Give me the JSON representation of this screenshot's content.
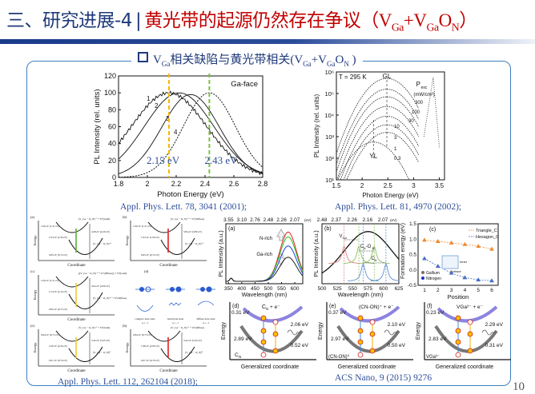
{
  "title": {
    "prefix": "三、研究进展-4",
    "separator": "|",
    "main": "黄光带的起源仍然存在争议",
    "formula": "（V",
    "f_sub1": "Ga",
    "f_plus": "+V",
    "f_sub2": "Ga",
    "f_o": "O",
    "f_sub3": "N",
    "f_close": "）"
  },
  "section": {
    "pre": "V",
    "sub1": "Ga",
    "text": "相关缺陷与黄光带相关(V",
    "sub2": "Ga",
    "plus": "+V",
    "sub3": "Ga",
    "o": "O",
    "sub4": "N",
    "close": " )"
  },
  "citations": {
    "c1": "Appl. Phys. Lett. 78, 3041 (2001);",
    "c2": "Appl. Phys. Lett. 81, 4970 (2002);",
    "c3": "Appl. Phys. Lett. 112, 262104 (2018);",
    "c4": "ACS Nano, 9 (2015) 9276"
  },
  "page_number": "10",
  "colors": {
    "title_blue": "#1f3a7a",
    "title_red": "#c00000",
    "box_border": "#3d7fc0",
    "yellow_line": "#f5b800",
    "green_line": "#7cc043"
  },
  "chart_data": [
    {
      "id": "plot1",
      "type": "line",
      "xlabel": "Photon Energy (eV)",
      "ylabel": "PL Intensity (rel. units)",
      "xlim": [
        1.8,
        2.8
      ],
      "ylim": [
        0,
        120
      ],
      "xticks": [
        "1.8",
        "2",
        "2.2",
        "2.4",
        "2.6",
        "2.8"
      ],
      "yticks": [
        "0",
        "20",
        "40",
        "60",
        "80",
        "100",
        "120"
      ],
      "annotation": "Ga-face",
      "series": [
        {
          "name": "1",
          "peak_eV": 2.15,
          "peak": 100,
          "sigma": 0.26
        },
        {
          "name": "2",
          "peak_eV": 2.22,
          "peak": 100,
          "sigma": 0.24
        },
        {
          "name": "3",
          "peak_eV": 2.3,
          "peak": 98,
          "sigma": 0.2
        },
        {
          "name": "4",
          "peak_eV": 2.43,
          "peak": 100,
          "sigma": 0.18
        }
      ],
      "markers": [
        {
          "x": 2.15,
          "label": "2.15 eV",
          "color": "#f5b800"
        },
        {
          "x": 2.43,
          "label": "2.43 eV",
          "color": "#7cc043"
        }
      ]
    },
    {
      "id": "plot2",
      "type": "line",
      "xlabel": "Photon Energy (eV)",
      "ylabel": "PL Intensity (rel. units)",
      "xlim": [
        1.5,
        3.6
      ],
      "ylim_log10": [
        1,
        6
      ],
      "xticks": [
        "1.5",
        "2",
        "2.5",
        "3",
        "3.5"
      ],
      "yticks": [
        "10¹",
        "10²",
        "10³",
        "10⁴",
        "10⁵",
        "10⁶"
      ],
      "annotations": {
        "temp": "T = 295 K",
        "gl": "GL",
        "yl": "YL",
        "pexc": "P",
        "pexc_sub": "exc",
        "units": "(mW/cm²)"
      },
      "power_labels": [
        "300",
        "100",
        "30",
        "10",
        "3",
        "1",
        "0.3"
      ],
      "series_peaks_log10": [
        5.7,
        5.2,
        4.85,
        4.4,
        3.95,
        3.55,
        3.2,
        2.75
      ]
    },
    {
      "id": "panel-a",
      "type": "line",
      "label": "(a)",
      "xlabel": "Wavelength (nm)",
      "ylabel": "PL Intensity (a.u.)",
      "xticks": [
        "350",
        "400",
        "450",
        "500",
        "550",
        "600"
      ],
      "top_ticks": [
        "3.55",
        "3.10",
        "2.76",
        "2.48",
        "2.26",
        "2.07"
      ],
      "top_unit": "(eV)",
      "arrows": [
        "N-rich",
        "Ga-rich"
      ],
      "series": [
        {
          "color": "#e02020",
          "peak": 0.92
        },
        {
          "color": "#20c020",
          "peak": 0.83
        },
        {
          "color": "#2040e0",
          "peak": 0.66
        },
        {
          "color": "#222222",
          "peak": 0.45
        }
      ]
    },
    {
      "id": "panel-b",
      "type": "line",
      "label": "(b)",
      "xlabel": "Wavelength (nm)",
      "ylabel": "PL Intensity (a.u.)",
      "xticks": [
        "500",
        "525",
        "550",
        "575",
        "600",
        "625"
      ],
      "top_ticks": [
        "2.48",
        "2.37",
        "2.26",
        "2.16",
        "2.07"
      ],
      "top_unit": "(eV)",
      "labels": [
        "V",
        "C",
        "C"
      ],
      "label_subs": [
        "Ga",
        "N",
        "N"
      ],
      "label_mid": "-O",
      "label_mid_sub": "N",
      "peaks_nm": [
        536,
        560,
        567,
        585,
        604
      ]
    },
    {
      "id": "panel-c",
      "type": "scatter",
      "label": "(c)",
      "xlabel": "Position",
      "ylabel": "Formation energy (eV)",
      "xticks": [
        "1",
        "2",
        "3",
        "4",
        "5",
        "6"
      ],
      "yticks": [
        "-0.5",
        "0.0",
        "0.5",
        "1.0",
        "1.5"
      ],
      "ylim": [
        -0.5,
        1.5
      ],
      "legend": [
        "Triangle_C",
        "Hexagon_C"
      ],
      "legend_sub": "N",
      "legend2": [
        "Gallium",
        "Nitrogen"
      ],
      "inset_labels": [
        "Inner",
        "Surface"
      ],
      "series": [
        {
          "name": "Triangle_CN",
          "color": "#f08a30",
          "values": [
            0.97,
            0.93,
            0.88,
            0.83,
            0.77,
            0.68
          ]
        },
        {
          "name": "Hexagon_CN",
          "color": "#4a70c8",
          "values": [
            0.37,
            0.12,
            -0.1,
            -0.25,
            -0.32,
            -0.35
          ]
        }
      ]
    }
  ],
  "ccd_panels": [
    {
      "label": "(d)",
      "upper": "C",
      "upper_sub": "N",
      "upper_sup": "0",
      "upper_tail": " + e⁻",
      "lower": "C",
      "lower_sub": "N",
      "lower_sup": "-",
      "e_top": "0.31 eV",
      "e_abs": "2.89 eV",
      "e_emit": "2.06 eV",
      "e_bot": "0.52 eV"
    },
    {
      "label": "(e)",
      "upper": "(C",
      "upper_sub": "N",
      "upper_sup": "",
      "upper_tail": "-O",
      "lower": "(C",
      "lower_sub": "N",
      "lower_sup": "",
      "lower_tail": "-O",
      "upper_full": "(CN-ON)⁺ + e⁻",
      "lower_full": "(CN-ON)⁰",
      "e_top": "0.37 eV",
      "e_abs": "2.97 eV",
      "e_emit": "2.10 eV",
      "e_bot": "0.50 eV"
    },
    {
      "label": "(f)",
      "upper_full": "VGa²⁻ + e⁻",
      "lower_full": "VGa³⁻",
      "e_top": "0.23 eV",
      "e_abs": "2.83 eV",
      "e_emit": "2.29 eV",
      "e_bot": "0.31 eV"
    }
  ],
  "ccd_common": {
    "ylabel": "Energy",
    "xlabel": "Generalized coordinate"
  },
  "config_diagrams": {
    "xlabel": "Coordinate",
    "ylabel": "Energy",
    "panels": [
      {
        "label": "(a)",
        "top": "(V_Ga − O_N)⁻² + h⁺(band)",
        "bottom": "(V_Ga − O_N)⁻¹",
        "e1": "1.06 eV (1.21 eV)",
        "e2": "2.33 eV (2.36 eV)",
        "e3": "4.28 eV (4.29 eV)",
        "e4": "0.85 eV (0.72 eV)",
        "color": "#5cb030"
      },
      {
        "label": "(b)",
        "top": "(V_Ga − O_N)⁻² + h⁺(diffuse)",
        "bottom": "(V_Ga − O_N)⁻¹",
        "e1": "1.06 eV (1.21 eV)",
        "e2": "1.93 eV (1.99 eV)",
        "e3": "3.84 eV (3.89 eV)",
        "e4": "0.85 eV (0.72 eV)",
        "color": "#e02020"
      },
      {
        "label": "(c)",
        "top": "[(V_Ga − O_N)⁻² + h⁺(diffuse)] + h⁺(band)",
        "bottom": "(V_Ga − O_N)⁻¹ + h⁺(diffuse)",
        "e1": "1.06 eV (1.21 eV)",
        "e2": "2.13 eV (2.16 eV)",
        "e3": "4.04 eV (4.09 eV)",
        "e4": "0.85 eV (0.72 eV)",
        "color": "#f0c830"
      },
      {
        "label": "(e)",
        "top": "(V_Ga − O_N)⁻¹ + h⁺(band)",
        "bottom": "(V_Ga − O_N)⁰",
        "e1": "0.84 eV (0.75 eV)",
        "e2": "2.30 eV (2.26 eV)",
        "e3": "3.42 eV (3.45 eV)",
        "e4": "0.67 eV (0.70 eV)",
        "color": "#f0c830"
      },
      {
        "label": "(h)",
        "top": "(V_Ga − O_N)⁻¹ + h⁺(diffuse)",
        "bottom": "(V_Ga − O_N)⁰",
        "e1": "0.84 eV (0.75 eV)",
        "e2": "1.98 eV (2.00 eV)",
        "e3": "3.42 eV (3.45 eV)",
        "e4": "0.67 eV (0.70 eV)",
        "color": "#e02020"
      }
    ],
    "hole_panel": {
      "label": "(d)",
      "states": [
        "compact hole state",
        "band hole state",
        "diffuse hole state"
      ],
      "q": "q = -1"
    }
  }
}
